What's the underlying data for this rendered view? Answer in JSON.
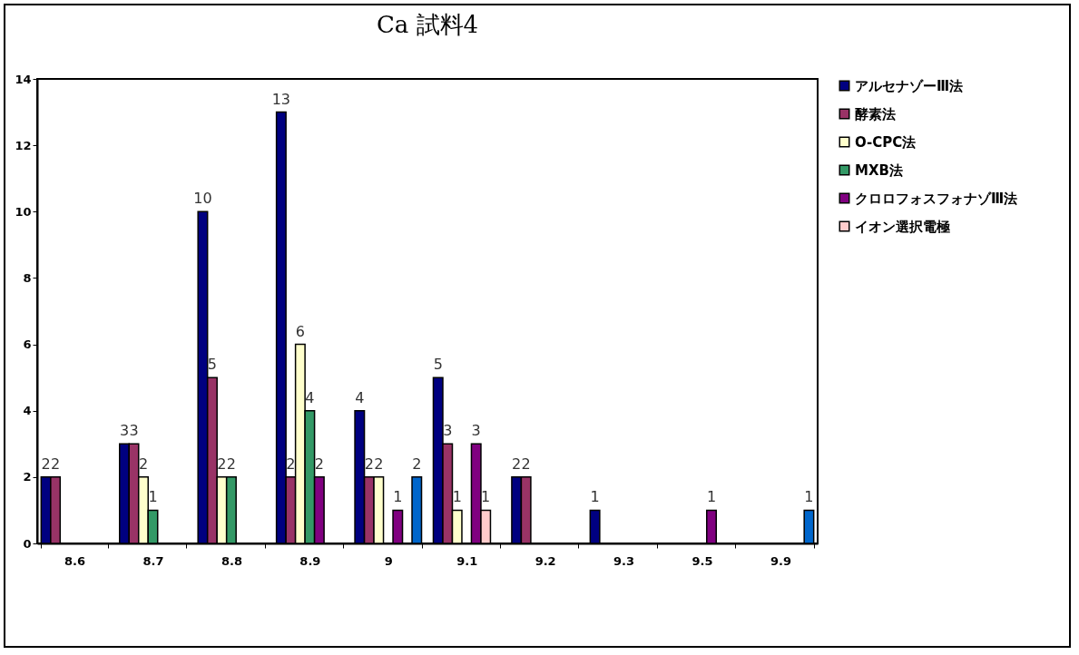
{
  "chart_data": {
    "type": "bar",
    "title": "Ca 試料4",
    "categories": [
      "8.6",
      "8.7",
      "8.8",
      "8.9",
      "9",
      "9.1",
      "9.2",
      "9.3",
      "9.5",
      "9.9"
    ],
    "series": [
      {
        "name": "アルセナゾーⅢ法",
        "color": "#000080",
        "values": [
          2,
          3,
          10,
          13,
          4,
          5,
          2,
          1,
          null,
          null
        ]
      },
      {
        "name": "酵素法",
        "color": "#993366",
        "values": [
          2,
          3,
          5,
          2,
          2,
          3,
          2,
          null,
          null,
          null
        ]
      },
      {
        "name": "O-CPC法",
        "color": "#ffffcc",
        "values": [
          null,
          2,
          2,
          6,
          2,
          1,
          null,
          null,
          null,
          null
        ]
      },
      {
        "name": "MXB法",
        "color": "#339966",
        "values": [
          null,
          1,
          2,
          4,
          null,
          null,
          null,
          null,
          null,
          null
        ]
      },
      {
        "name": "クロロフォスフォナゾⅢ法",
        "color": "#800080",
        "values": [
          null,
          null,
          null,
          2,
          1,
          3,
          null,
          null,
          1,
          null
        ]
      },
      {
        "name": "イオン選択電極",
        "color": "#ffcccc",
        "values": [
          null,
          null,
          null,
          null,
          null,
          1,
          null,
          null,
          null,
          null
        ]
      },
      {
        "color": "#0066cc",
        "values": [
          null,
          null,
          null,
          null,
          2,
          null,
          null,
          null,
          null,
          1
        ]
      }
    ],
    "ylim": [
      0,
      14
    ],
    "yticks": [
      0,
      2,
      4,
      6,
      8,
      10,
      12,
      14
    ],
    "grid": false,
    "legend": "right",
    "data_labels": true
  }
}
